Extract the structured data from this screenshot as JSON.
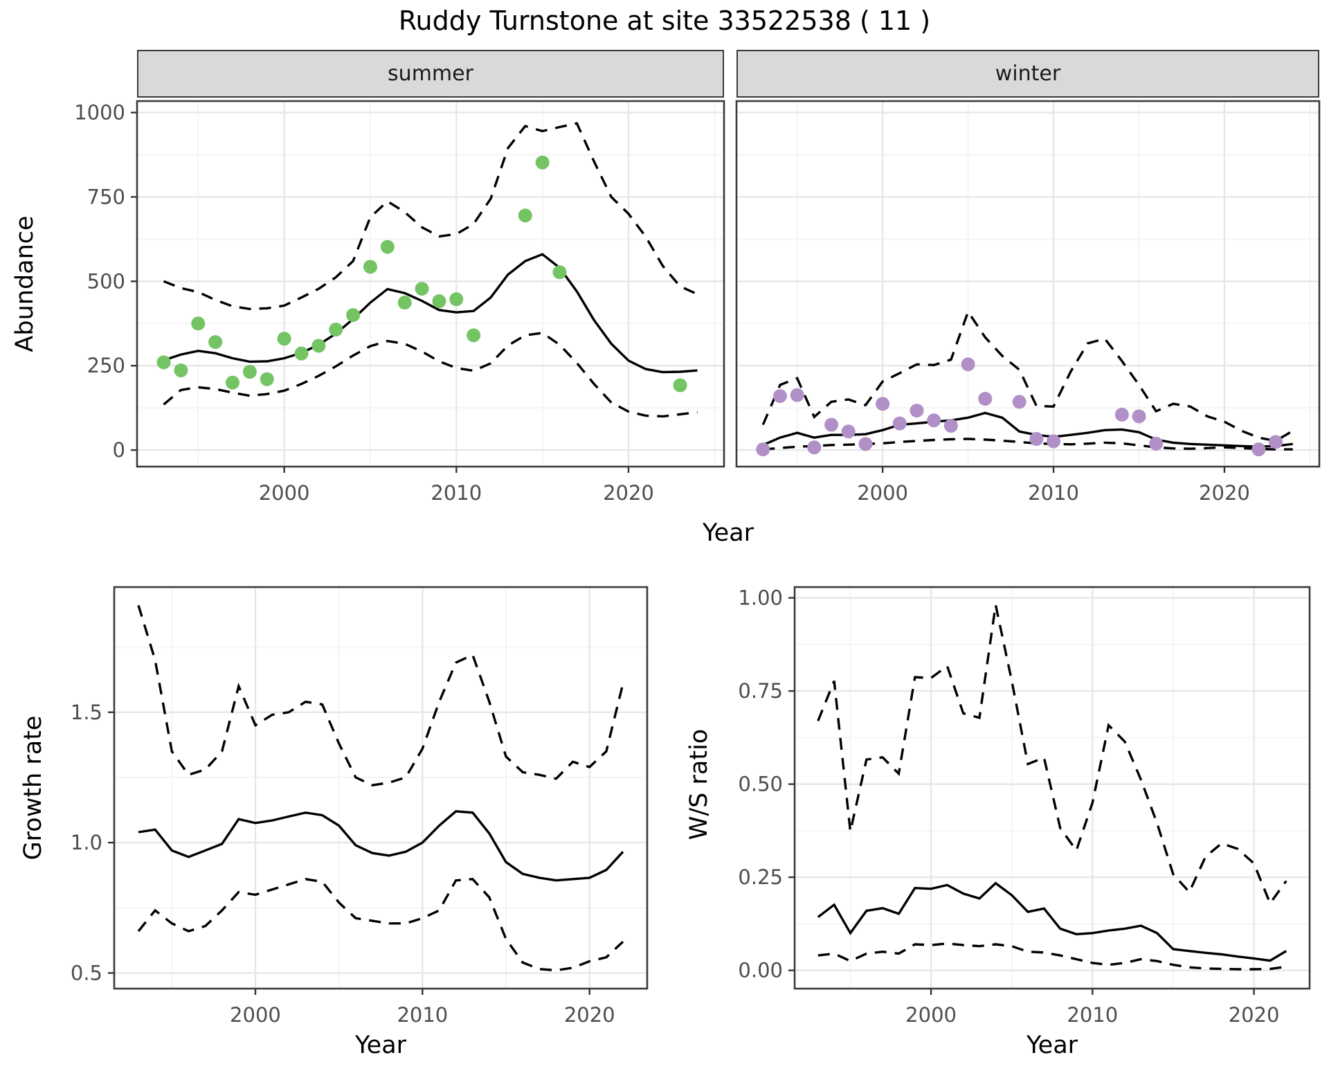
{
  "title": "Ruddy Turnstone at site 33522538 ( 11 )",
  "facets": {
    "summer": "summer",
    "winter": "winter"
  },
  "axes": {
    "abundance_label": "Abundance",
    "year_label": "Year",
    "growth_label": "Growth rate",
    "ws_label": "W/S ratio"
  },
  "colors": {
    "summer_points": "#74c464",
    "winter_points": "#b18fc7",
    "line": "#000000",
    "grid_major": "#e7e7e7",
    "grid_minor": "#f3f3f3",
    "panel_border": "#3a3a3a",
    "strip_bg": "#d9d9d9",
    "tick_text": "#4d4d4d"
  },
  "chart_data": [
    {
      "name": "abundance-summer",
      "type": "line",
      "facet": "summer",
      "ylabel": "Abundance",
      "xlabel": "Year",
      "x": {
        "lim": [
          1991.45,
          2025.55
        ],
        "ticks": {
          "values": [
            2000,
            2010,
            2020
          ],
          "labels": [
            "2000",
            "2010",
            "2020"
          ]
        },
        "minor": [
          1995,
          2005,
          2015,
          2025
        ]
      },
      "y": {
        "lim": [
          -49,
          1034
        ],
        "ticks": {
          "values": [
            0,
            250,
            500,
            750,
            1000
          ],
          "labels": [
            "0",
            "250",
            "500",
            "750",
            "1000"
          ]
        },
        "minor": [
          125,
          375,
          625,
          875
        ]
      },
      "lines": {
        "years": [
          1993,
          1994,
          1995,
          1996,
          1997,
          1998,
          1999,
          2000,
          2001,
          2002,
          2003,
          2004,
          2005,
          2006,
          2007,
          2008,
          2009,
          2010,
          2011,
          2012,
          2013,
          2014,
          2015,
          2016,
          2017,
          2018,
          2019,
          2020,
          2021,
          2022,
          2023,
          2024
        ],
        "mean": [
          266,
          283,
          294,
          287,
          272,
          262,
          263,
          272,
          288,
          312,
          345,
          388,
          437,
          477,
          465,
          442,
          415,
          408,
          412,
          452,
          520,
          560,
          580,
          540,
          470,
          385,
          315,
          265,
          240,
          231,
          232,
          236
        ],
        "upper_ci": [
          500,
          480,
          468,
          445,
          426,
          418,
          420,
          428,
          452,
          478,
          512,
          560,
          690,
          737,
          705,
          660,
          633,
          640,
          670,
          745,
          895,
          960,
          945,
          957,
          968,
          855,
          750,
          700,
          632,
          545,
          485,
          462
        ],
        "lower_ci": [
          135,
          178,
          186,
          181,
          170,
          161,
          166,
          176,
          196,
          220,
          248,
          280,
          308,
          323,
          315,
          292,
          263,
          243,
          235,
          257,
          310,
          340,
          347,
          312,
          258,
          196,
          141,
          114,
          102,
          100,
          106,
          112
        ]
      },
      "points": {
        "years": [
          1993,
          1994,
          1995,
          1996,
          1997,
          1998,
          1999,
          2000,
          2001,
          2002,
          2003,
          2004,
          2005,
          2006,
          2007,
          2008,
          2009,
          2010,
          2011,
          2014,
          2015,
          2016,
          2023
        ],
        "values": [
          260,
          236,
          375,
          320,
          200,
          232,
          210,
          330,
          286,
          309,
          357,
          400,
          543,
          602,
          437,
          478,
          441,
          447,
          340,
          695,
          852,
          527,
          192
        ]
      },
      "point_color": "#74c464"
    },
    {
      "name": "abundance-winter",
      "type": "line",
      "facet": "winter",
      "ylabel": "Abundance",
      "xlabel": "Year",
      "x": {
        "lim": [
          1991.45,
          2025.55
        ],
        "ticks": {
          "values": [
            2000,
            2010,
            2020
          ],
          "labels": [
            "2000",
            "2010",
            "2020"
          ]
        },
        "minor": [
          1995,
          2005,
          2015,
          2025
        ]
      },
      "y": {
        "lim": [
          -49,
          1034
        ],
        "ticks": {
          "values": [
            0,
            250,
            500,
            750,
            1000
          ],
          "labels": [
            "0",
            "250",
            "500",
            "750",
            "1000"
          ]
        },
        "minor": [
          125,
          375,
          625,
          875
        ]
      },
      "lines": {
        "years": [
          1993,
          1994,
          1995,
          1996,
          1997,
          1998,
          1999,
          2000,
          2001,
          2002,
          2003,
          2004,
          2005,
          2006,
          2007,
          2008,
          2009,
          2010,
          2011,
          2012,
          2013,
          2014,
          2015,
          2016,
          2017,
          2018,
          2019,
          2020,
          2021,
          2022,
          2023,
          2024
        ],
        "mean": [
          15,
          37,
          51,
          37,
          45,
          45,
          47,
          59,
          75,
          79,
          84,
          88,
          96,
          110,
          96,
          55,
          45,
          39,
          45,
          51,
          59,
          61,
          53,
          31,
          22,
          18,
          16,
          14,
          12,
          10,
          12,
          18
        ],
        "upper_ci": [
          75,
          193,
          213,
          98,
          143,
          150,
          133,
          203,
          228,
          254,
          252,
          268,
          410,
          334,
          279,
          238,
          131,
          129,
          232,
          316,
          330,
          264,
          193,
          115,
          137,
          129,
          100,
          84,
          57,
          37,
          27,
          57
        ],
        "lower_ci": [
          2,
          6,
          10,
          12,
          15,
          16,
          18,
          20,
          24,
          27,
          30,
          32,
          33,
          31,
          28,
          24,
          20,
          18,
          17,
          19,
          22,
          20,
          14,
          8,
          5,
          4,
          6,
          8,
          6,
          3,
          2,
          2
        ]
      },
      "points": {
        "years": [
          1993,
          1994,
          1995,
          1996,
          1997,
          1998,
          1999,
          2000,
          2001,
          2002,
          2003,
          2004,
          2005,
          2006,
          2008,
          2009,
          2010,
          2014,
          2015,
          2016,
          2022,
          2023
        ],
        "values": [
          2,
          160,
          163,
          8,
          75,
          55,
          18,
          137,
          79,
          117,
          88,
          72,
          254,
          152,
          143,
          33,
          26,
          105,
          100,
          19,
          2,
          24
        ]
      },
      "point_color": "#b18fc7"
    },
    {
      "name": "growth-rate",
      "type": "line",
      "ylabel": "Growth rate",
      "xlabel": "Year",
      "x": {
        "lim": [
          1991.55,
          2023.45
        ],
        "ticks": {
          "values": [
            2000,
            2010,
            2020
          ],
          "labels": [
            "2000",
            "2010",
            "2020"
          ]
        },
        "minor": [
          1995,
          2005,
          2015
        ]
      },
      "y": {
        "lim": [
          0.44,
          1.98
        ],
        "ticks": {
          "values": [
            0.5,
            1.0,
            1.5
          ],
          "labels": [
            "0.5",
            "1.0",
            "1.5"
          ]
        },
        "minor": [
          0.75,
          1.25,
          1.75
        ]
      },
      "lines": {
        "years": [
          1993,
          1994,
          1995,
          1996,
          1997,
          1998,
          1999,
          2000,
          2001,
          2002,
          2003,
          2004,
          2005,
          2006,
          2007,
          2008,
          2009,
          2010,
          2011,
          2012,
          2013,
          2014,
          2015,
          2016,
          2017,
          2018,
          2019,
          2020,
          2021,
          2022
        ],
        "mean": [
          1.04,
          1.05,
          0.97,
          0.945,
          0.97,
          0.995,
          1.09,
          1.075,
          1.085,
          1.1,
          1.115,
          1.105,
          1.065,
          0.99,
          0.96,
          0.95,
          0.965,
          1.0,
          1.065,
          1.12,
          1.115,
          1.035,
          0.925,
          0.88,
          0.865,
          0.855,
          0.86,
          0.865,
          0.895,
          0.965
        ],
        "upper_ci": [
          1.91,
          1.7,
          1.35,
          1.26,
          1.28,
          1.35,
          1.6,
          1.45,
          1.49,
          1.5,
          1.54,
          1.53,
          1.38,
          1.25,
          1.22,
          1.23,
          1.25,
          1.36,
          1.54,
          1.69,
          1.72,
          1.54,
          1.33,
          1.27,
          1.26,
          1.245,
          1.31,
          1.29,
          1.35,
          1.61
        ],
        "lower_ci": [
          0.66,
          0.74,
          0.69,
          0.66,
          0.68,
          0.74,
          0.81,
          0.8,
          0.82,
          0.84,
          0.86,
          0.85,
          0.77,
          0.71,
          0.7,
          0.69,
          0.69,
          0.71,
          0.74,
          0.855,
          0.86,
          0.79,
          0.63,
          0.54,
          0.515,
          0.51,
          0.52,
          0.545,
          0.56,
          0.62
        ]
      },
      "points": {
        "years": [],
        "values": []
      },
      "point_color": "#000000"
    },
    {
      "name": "ws-ratio",
      "type": "line",
      "ylabel": "W/S ratio",
      "xlabel": "Year",
      "x": {
        "lim": [
          1991.55,
          2023.45
        ],
        "ticks": {
          "values": [
            2000,
            2010,
            2020
          ],
          "labels": [
            "2000",
            "2010",
            "2020"
          ]
        },
        "minor": [
          1995,
          2005,
          2015
        ]
      },
      "y": {
        "lim": [
          -0.049,
          1.029
        ],
        "ticks": {
          "values": [
            0,
            0.25,
            0.5,
            0.75,
            1.0
          ],
          "labels": [
            "0.00",
            "0.25",
            "0.50",
            "0.75",
            "1.00"
          ]
        },
        "minor": [
          0.125,
          0.375,
          0.625,
          0.875
        ]
      },
      "lines": {
        "years": [
          1993,
          1994,
          1995,
          1996,
          1997,
          1998,
          1999,
          2000,
          2001,
          2002,
          2003,
          2004,
          2005,
          2006,
          2007,
          2008,
          2009,
          2010,
          2011,
          2012,
          2013,
          2014,
          2015,
          2016,
          2017,
          2018,
          2019,
          2020,
          2021,
          2022
        ],
        "mean": [
          0.143,
          0.176,
          0.1,
          0.16,
          0.167,
          0.152,
          0.221,
          0.219,
          0.229,
          0.206,
          0.193,
          0.234,
          0.202,
          0.157,
          0.166,
          0.112,
          0.097,
          0.1,
          0.107,
          0.112,
          0.12,
          0.1,
          0.057,
          0.052,
          0.047,
          0.043,
          0.037,
          0.032,
          0.026,
          0.052
        ],
        "upper_ci": [
          0.67,
          0.777,
          0.373,
          0.566,
          0.572,
          0.528,
          0.787,
          0.785,
          0.817,
          0.69,
          0.678,
          0.981,
          0.777,
          0.554,
          0.571,
          0.382,
          0.322,
          0.45,
          0.658,
          0.614,
          0.512,
          0.395,
          0.258,
          0.21,
          0.305,
          0.341,
          0.326,
          0.287,
          0.18,
          0.24
        ],
        "lower_ci": [
          0.04,
          0.045,
          0.025,
          0.045,
          0.05,
          0.045,
          0.07,
          0.068,
          0.072,
          0.068,
          0.065,
          0.07,
          0.065,
          0.05,
          0.048,
          0.04,
          0.03,
          0.02,
          0.015,
          0.02,
          0.03,
          0.025,
          0.015,
          0.008,
          0.005,
          0.004,
          0.003,
          0.003,
          0.004,
          0.01
        ]
      },
      "points": {
        "years": [],
        "values": []
      },
      "point_color": "#000000"
    }
  ]
}
